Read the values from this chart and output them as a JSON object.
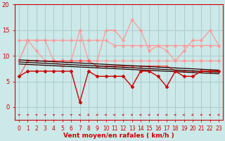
{
  "x": [
    0,
    1,
    2,
    3,
    4,
    5,
    6,
    7,
    8,
    9,
    10,
    11,
    12,
    13,
    14,
    15,
    16,
    17,
    18,
    19,
    20,
    21,
    22,
    23
  ],
  "line_rafales_light": [
    9,
    13,
    11,
    9,
    9,
    8,
    9,
    15,
    9,
    9,
    15,
    15,
    13,
    17,
    15,
    11,
    12,
    11,
    9,
    11,
    13,
    13,
    15,
    12
  ],
  "line_upper_env1": [
    13,
    13,
    13,
    13,
    13,
    13,
    13,
    13,
    13,
    13,
    13,
    12,
    12,
    12,
    12,
    12,
    12,
    12,
    12,
    12,
    12,
    12,
    12,
    12
  ],
  "line_upper_env2": [
    9,
    13,
    13,
    13,
    9,
    9,
    9,
    9,
    9,
    9,
    9,
    9,
    9,
    9,
    9,
    9,
    9,
    9,
    9,
    9,
    9,
    9,
    9,
    9
  ],
  "line_moy": [
    6,
    7,
    7,
    7,
    7,
    7,
    7,
    1,
    7,
    6,
    6,
    6,
    6,
    4,
    7,
    7,
    6,
    4,
    7,
    6,
    6,
    7,
    7,
    7
  ],
  "line_medium": [
    6,
    9,
    9,
    9,
    9,
    9,
    9,
    9,
    9,
    8,
    8,
    8,
    8,
    8,
    8,
    8,
    8,
    8,
    7,
    7,
    7,
    7,
    7,
    7
  ],
  "line_trend1_x": [
    0,
    23
  ],
  "line_trend1_y": [
    9.2,
    7.2
  ],
  "line_trend2_x": [
    0,
    23
  ],
  "line_trend2_y": [
    8.8,
    6.8
  ],
  "line_trend3_x": [
    0,
    23
  ],
  "line_trend3_y": [
    8.4,
    6.5
  ],
  "background_color": "#cce8e8",
  "grid_color": "#aacccc",
  "color_light_pink": "#ff9999",
  "color_medium_red": "#ff5555",
  "color_dark_red": "#cc0000",
  "color_black": "#220000",
  "xlabel": "Vent moyen/en rafales ( km/h )",
  "ylim": [
    -2.5,
    20
  ],
  "xlim": [
    -0.5,
    23.5
  ],
  "yticks": [
    0,
    5,
    10,
    15,
    20
  ],
  "xticks": [
    0,
    1,
    2,
    3,
    4,
    5,
    6,
    7,
    8,
    9,
    10,
    11,
    12,
    13,
    14,
    15,
    16,
    17,
    18,
    19,
    20,
    21,
    22,
    23
  ]
}
